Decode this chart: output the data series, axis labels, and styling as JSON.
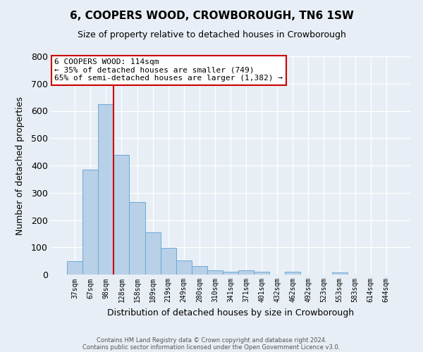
{
  "title": "6, COOPERS WOOD, CROWBOROUGH, TN6 1SW",
  "subtitle": "Size of property relative to detached houses in Crowborough",
  "xlabel": "Distribution of detached houses by size in Crowborough",
  "ylabel": "Number of detached properties",
  "bar_labels": [
    "37sqm",
    "67sqm",
    "98sqm",
    "128sqm",
    "158sqm",
    "189sqm",
    "219sqm",
    "249sqm",
    "280sqm",
    "310sqm",
    "341sqm",
    "371sqm",
    "401sqm",
    "432sqm",
    "462sqm",
    "492sqm",
    "523sqm",
    "553sqm",
    "583sqm",
    "614sqm",
    "644sqm"
  ],
  "bar_values": [
    48,
    385,
    625,
    440,
    265,
    155,
    97,
    52,
    30,
    15,
    10,
    15,
    10,
    0,
    10,
    0,
    0,
    7,
    0,
    0,
    0
  ],
  "bar_color": "#b8d0e8",
  "bar_edge_color": "#6aaad4",
  "vline_color": "#cc0000",
  "vline_x": 2.5,
  "annotation_title": "6 COOPERS WOOD: 114sqm",
  "annotation_line1": "← 35% of detached houses are smaller (749)",
  "annotation_line2": "65% of semi-detached houses are larger (1,382) →",
  "ylim": [
    0,
    800
  ],
  "yticks": [
    0,
    100,
    200,
    300,
    400,
    500,
    600,
    700,
    800
  ],
  "footer1": "Contains HM Land Registry data © Crown copyright and database right 2024.",
  "footer2": "Contains public sector information licensed under the Open Government Licence v3.0.",
  "bg_color": "#e8eef5",
  "plot_bg_color": "#e8eef5"
}
